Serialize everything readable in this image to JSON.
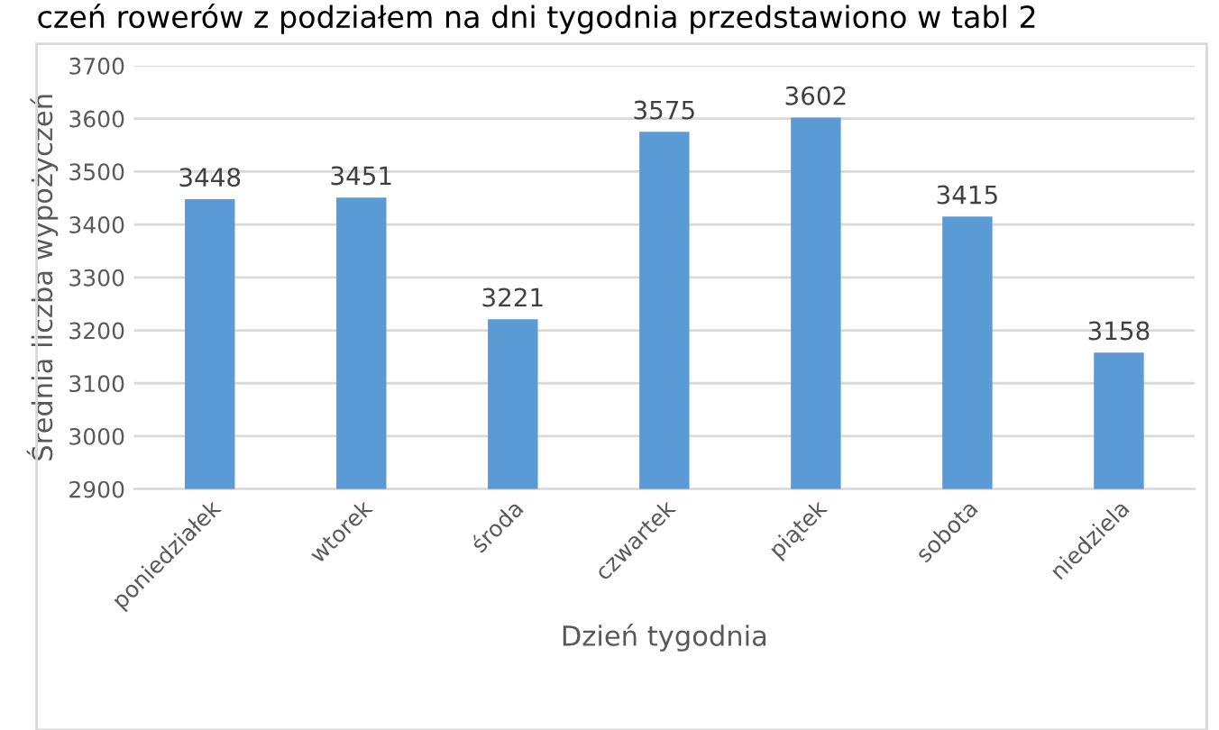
{
  "chart_data": {
    "type": "bar",
    "categories": [
      "poniedziałek",
      "wtorek",
      "środa",
      "czwartek",
      "piątek",
      "sobota",
      "niedziela"
    ],
    "values": [
      3448,
      3451,
      3221,
      3575,
      3602,
      3415,
      3158
    ],
    "color": "#5b9bd5",
    "xlabel": "Dzień tygodnia",
    "ylabel": "Średnia liczba wypożyczeń",
    "ylim": [
      2900,
      3700
    ],
    "yticks": [
      2900,
      3000,
      3100,
      3200,
      3300,
      3400,
      3500,
      3600,
      3700
    ],
    "grid": "y",
    "data_labels": true,
    "annotations": [
      "czeń rowerów z podziałem na dni tygodnia przedstawiono w tabl 2"
    ]
  }
}
